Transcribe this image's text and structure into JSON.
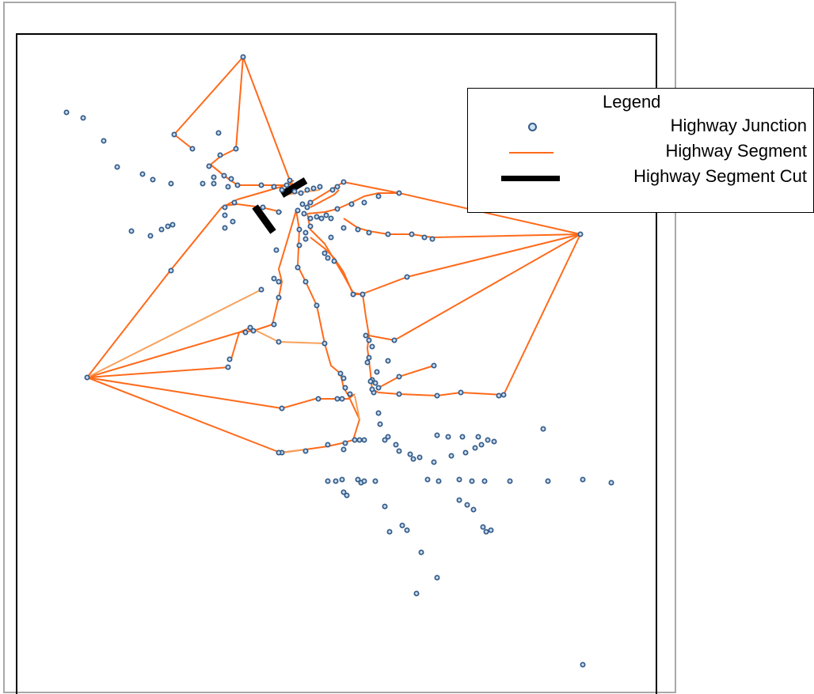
{
  "legend": {
    "title": "Legend",
    "junction_label": "Highway Junction",
    "segment_label": "Highway Segment",
    "cut_label": "Highway Segment Cut"
  },
  "colors": {
    "segment": "#ff6a1a",
    "segment_light": "#f7a15c",
    "junction_border": "#355c8a",
    "junction_fill": "#cfe2f3",
    "cut": "#000000",
    "frame": "#a8a8a8"
  }
}
